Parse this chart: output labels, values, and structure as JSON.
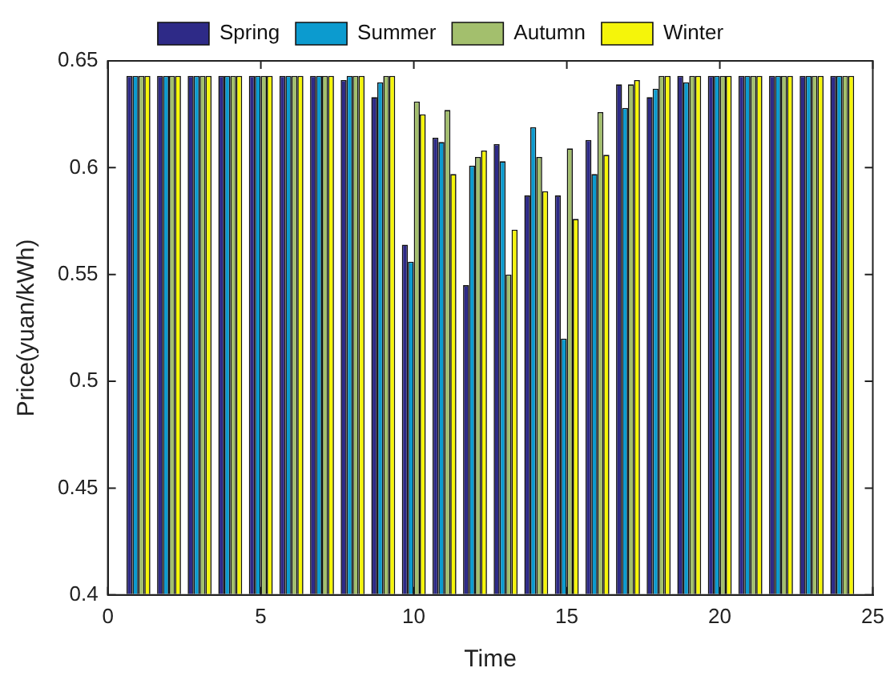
{
  "chart_data": {
    "type": "bar",
    "xlabel": "Time",
    "ylabel": "Price(yuan/kWh)",
    "x": [
      1,
      2,
      3,
      4,
      5,
      6,
      7,
      8,
      9,
      10,
      11,
      12,
      13,
      14,
      15,
      16,
      17,
      18,
      19,
      20,
      21,
      22,
      23,
      24
    ],
    "series": [
      {
        "name": "Spring",
        "color": "#2e2a87",
        "values": [
          0.643,
          0.643,
          0.643,
          0.643,
          0.643,
          0.643,
          0.643,
          0.641,
          0.633,
          0.564,
          0.614,
          0.545,
          0.611,
          0.587,
          0.587,
          0.613,
          0.639,
          0.633,
          0.643,
          0.643,
          0.643,
          0.643,
          0.643,
          0.643
        ]
      },
      {
        "name": "Summer",
        "color": "#0c9bcf",
        "values": [
          0.643,
          0.643,
          0.643,
          0.643,
          0.643,
          0.643,
          0.643,
          0.643,
          0.64,
          0.556,
          0.612,
          0.601,
          0.603,
          0.619,
          0.52,
          0.597,
          0.628,
          0.637,
          0.64,
          0.643,
          0.643,
          0.643,
          0.643,
          0.643
        ]
      },
      {
        "name": "Autumn",
        "color": "#a3bf6d",
        "values": [
          0.643,
          0.643,
          0.643,
          0.643,
          0.643,
          0.643,
          0.643,
          0.643,
          0.643,
          0.631,
          0.627,
          0.605,
          0.55,
          0.605,
          0.609,
          0.626,
          0.639,
          0.643,
          0.643,
          0.643,
          0.643,
          0.643,
          0.643,
          0.643
        ]
      },
      {
        "name": "Winter",
        "color": "#f5f50a",
        "values": [
          0.643,
          0.643,
          0.643,
          0.643,
          0.643,
          0.643,
          0.643,
          0.643,
          0.643,
          0.625,
          0.597,
          0.608,
          0.571,
          0.589,
          0.576,
          0.606,
          0.641,
          0.643,
          0.643,
          0.643,
          0.643,
          0.643,
          0.643,
          0.643
        ]
      }
    ],
    "xlim": [
      0,
      25
    ],
    "xticks": [
      0,
      5,
      10,
      15,
      20,
      25
    ],
    "ylim": [
      0.4,
      0.65
    ],
    "yticks": [
      0.4,
      0.45,
      0.5,
      0.55,
      0.6,
      0.65
    ],
    "grid": false,
    "legend": "top"
  }
}
